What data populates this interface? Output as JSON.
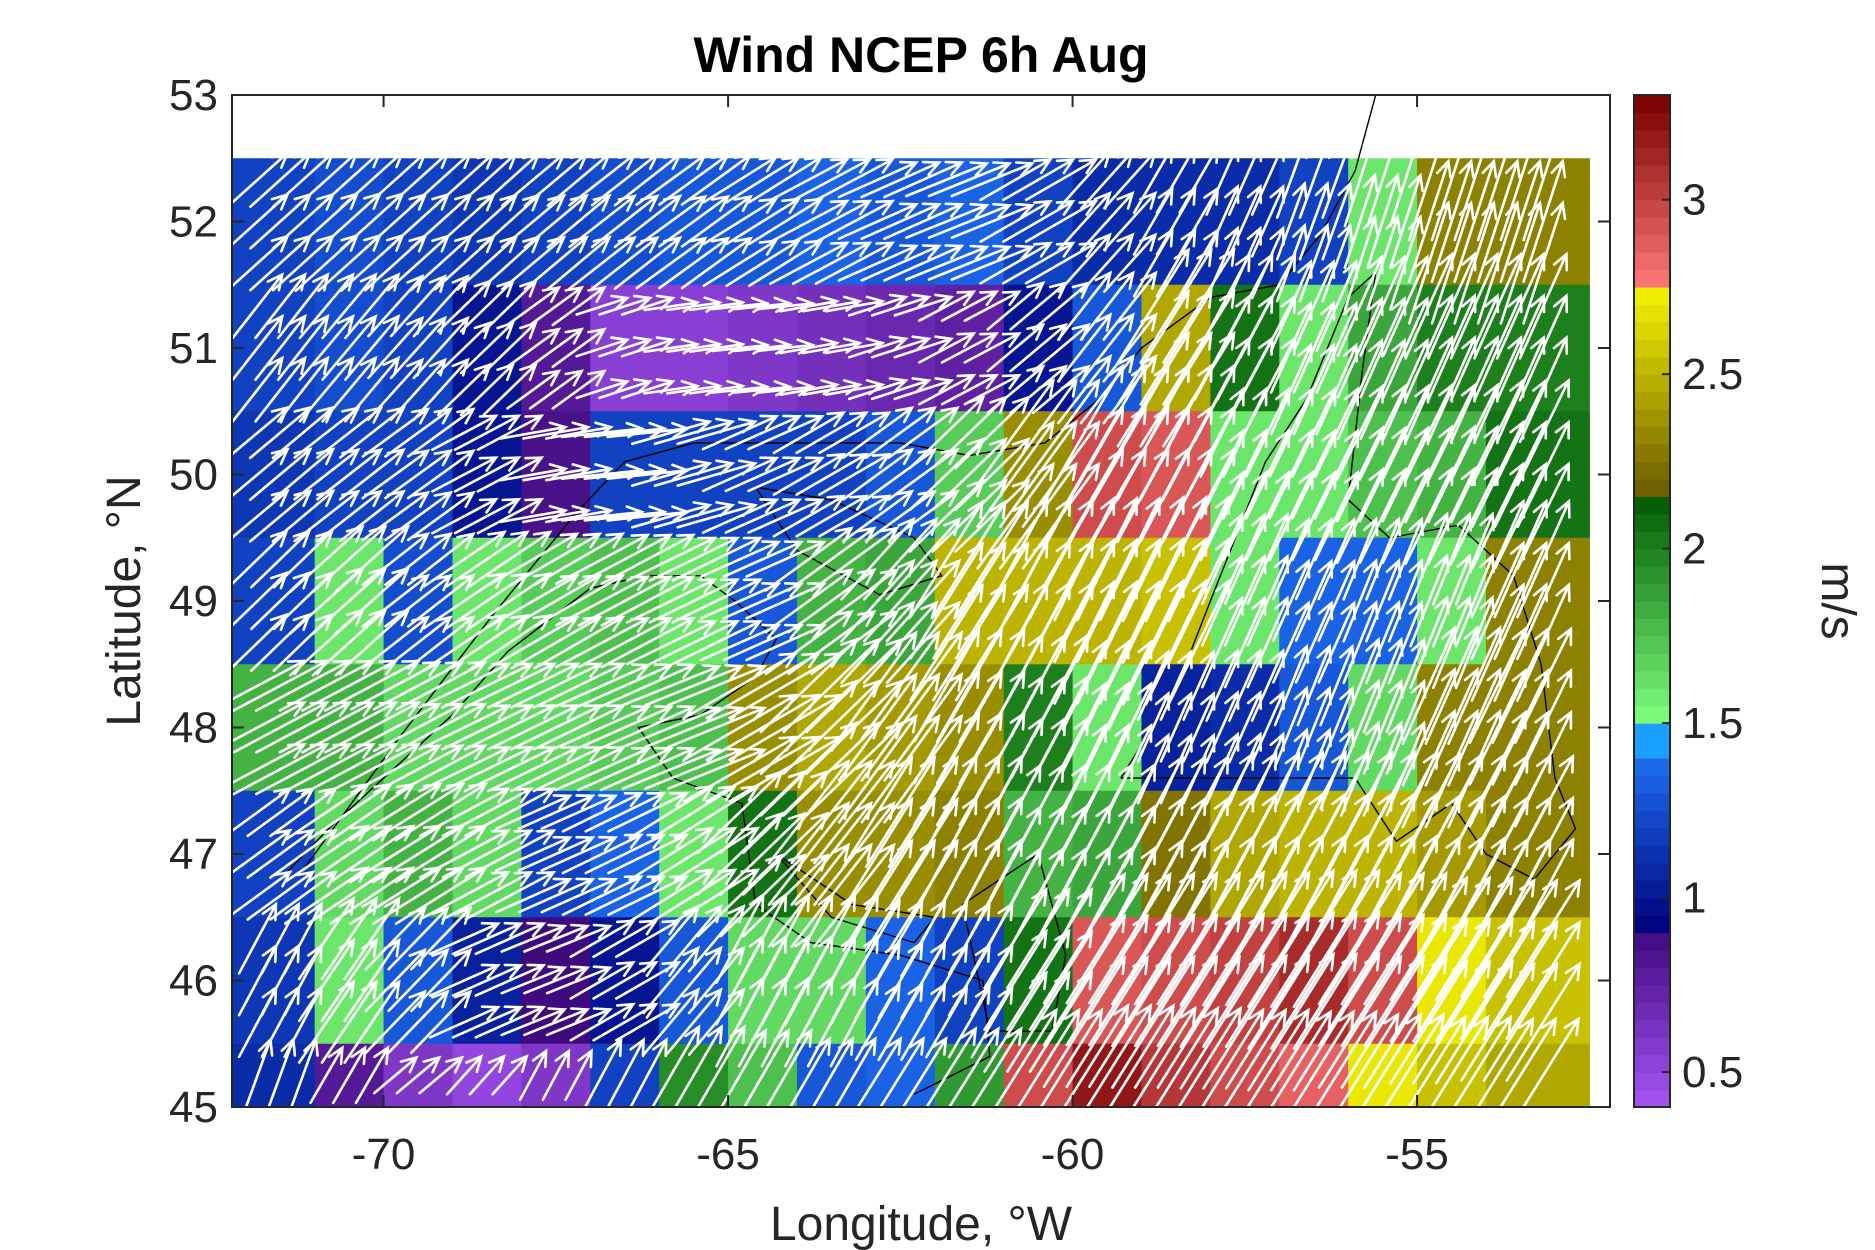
{
  "chart_data": {
    "type": "heatmap",
    "title": "Wind NCEP 6h Aug",
    "xlabel": "Longitude, °W",
    "ylabel": "Latitude, °N",
    "colorbar_label": "m/s",
    "xlim": [
      -72.2,
      -52.2
    ],
    "ylim": [
      45,
      53
    ],
    "xticks": [
      -70,
      -65,
      -60,
      -55
    ],
    "xtick_labels": [
      "-70",
      "-65",
      "-60",
      "-55"
    ],
    "yticks": [
      45,
      46,
      47,
      48,
      49,
      50,
      51,
      52,
      53
    ],
    "ytick_labels": [
      "45",
      "46",
      "47",
      "48",
      "49",
      "50",
      "51",
      "52",
      "53"
    ],
    "clim": [
      0.4,
      3.3
    ],
    "cbar_ticks": [
      0.5,
      1,
      1.5,
      2,
      2.5,
      3
    ],
    "cbar_tick_labels": [
      "0.5",
      "1",
      "1.5",
      "2",
      "2.5",
      "3"
    ],
    "colormap": [
      {
        "from": 0.4,
        "to": 0.9,
        "c0": "#a855f7",
        "c1": "#3f0a7e"
      },
      {
        "from": 0.9,
        "to": 1.4,
        "c0": "#00007a",
        "c1": "#1c6ef0"
      },
      {
        "from": 1.4,
        "to": 1.5,
        "c0": "#1ca0ff",
        "c1": "#1ca0ff"
      },
      {
        "from": 1.5,
        "to": 2.15,
        "c0": "#7fff7f",
        "c1": "#005a00"
      },
      {
        "from": 2.15,
        "to": 2.75,
        "c0": "#6b5a00",
        "c1": "#f5f500"
      },
      {
        "from": 2.75,
        "to": 3.3,
        "c0": "#ff7878",
        "c1": "#780000"
      }
    ],
    "grid": {
      "lon_centers": [
        -71.5,
        -70.5,
        -69.5,
        -68.5,
        -67.5,
        -66.5,
        -65.5,
        -64.5,
        -63.5,
        -62.5,
        -61.5,
        -60.5,
        -59.5,
        -58.5,
        -57.5,
        -56.5,
        -55.5,
        -54.5,
        -53.5
      ],
      "lat_centers": [
        52,
        51,
        50,
        49,
        48,
        47,
        46,
        45.25
      ],
      "lat_edges": [
        52.5,
        51.5,
        50.5,
        49.5,
        48.5,
        47.5,
        46.5,
        45.5,
        45
      ],
      "lon_edges": [
        -72.2,
        -71,
        -70,
        -69,
        -68,
        -67,
        -66,
        -65,
        -64,
        -63,
        -62,
        -61,
        -60,
        -59,
        -58,
        -57,
        -56,
        -55,
        -54,
        -52.5
      ],
      "speed": [
        [
          1.2,
          1.25,
          1.2,
          1.15,
          1.2,
          1.25,
          1.3,
          1.3,
          1.35,
          1.3,
          1.35,
          1.2,
          1.1,
          1.1,
          1.1,
          1.2,
          1.6,
          2.3,
          2.3
        ],
        [
          1.2,
          1.25,
          1.2,
          1.0,
          0.8,
          0.55,
          0.55,
          0.6,
          0.65,
          0.7,
          0.75,
          1.0,
          1.3,
          2.45,
          2.05,
          1.6,
          1.85,
          2.0,
          2.0
        ],
        [
          1.15,
          1.2,
          1.2,
          1.0,
          0.85,
          1.2,
          1.2,
          1.2,
          1.2,
          1.3,
          1.7,
          2.35,
          2.95,
          2.9,
          1.6,
          1.6,
          1.75,
          1.8,
          2.05
        ],
        [
          1.2,
          1.6,
          1.25,
          1.6,
          1.7,
          1.75,
          1.6,
          1.3,
          1.8,
          1.85,
          2.5,
          2.5,
          2.5,
          2.55,
          1.6,
          1.35,
          1.35,
          1.6,
          2.3
        ],
        [
          1.8,
          1.8,
          1.65,
          1.65,
          1.65,
          1.7,
          1.75,
          2.35,
          2.45,
          2.4,
          2.35,
          2.0,
          1.6,
          1.05,
          1.1,
          1.3,
          1.65,
          2.3,
          2.3
        ],
        [
          1.2,
          1.65,
          1.8,
          1.65,
          1.2,
          1.35,
          1.6,
          2.05,
          2.35,
          2.35,
          2.3,
          1.8,
          1.85,
          2.25,
          2.45,
          2.5,
          2.5,
          2.4,
          2.3
        ],
        [
          1.15,
          1.6,
          1.3,
          1.05,
          0.9,
          1.0,
          1.3,
          1.65,
          1.65,
          1.35,
          1.2,
          2.05,
          2.9,
          2.95,
          3.0,
          3.1,
          2.95,
          2.7,
          2.55
        ],
        [
          1.1,
          0.8,
          0.6,
          0.5,
          0.6,
          1.2,
          1.95,
          1.75,
          1.3,
          1.35,
          1.9,
          2.95,
          3.2,
          3.05,
          2.95,
          2.85,
          2.7,
          2.55,
          2.45
        ]
      ],
      "direction_deg": [
        [
          42,
          42,
          42,
          42,
          40,
          38,
          36,
          32,
          28,
          24,
          22,
          30,
          48,
          60,
          66,
          70,
          72,
          72,
          72
        ],
        [
          52,
          50,
          48,
          44,
          36,
          18,
          8,
          6,
          10,
          18,
          28,
          40,
          52,
          58,
          62,
          66,
          66,
          66,
          66
        ],
        [
          40,
          38,
          36,
          28,
          10,
          6,
          16,
          24,
          30,
          36,
          44,
          54,
          60,
          62,
          64,
          64,
          64,
          64,
          64
        ],
        [
          44,
          42,
          38,
          34,
          30,
          28,
          26,
          24,
          36,
          48,
          58,
          62,
          64,
          64,
          66,
          66,
          68,
          68,
          66
        ],
        [
          28,
          28,
          28,
          26,
          26,
          24,
          22,
          30,
          44,
          54,
          60,
          62,
          64,
          66,
          66,
          68,
          68,
          66,
          64
        ],
        [
          36,
          34,
          32,
          28,
          24,
          26,
          32,
          44,
          52,
          58,
          62,
          62,
          62,
          62,
          62,
          62,
          62,
          62,
          62
        ],
        [
          62,
          56,
          46,
          24,
          22,
          30,
          50,
          62,
          62,
          60,
          60,
          58,
          58,
          58,
          58,
          58,
          58,
          58,
          58
        ],
        [
          70,
          60,
          40,
          48,
          62,
          62,
          60,
          60,
          60,
          58,
          58,
          58,
          58,
          58,
          58,
          58,
          58,
          58,
          58
        ]
      ],
      "arrow_color": "#ffffff"
    },
    "coastline_color": "#000000"
  }
}
